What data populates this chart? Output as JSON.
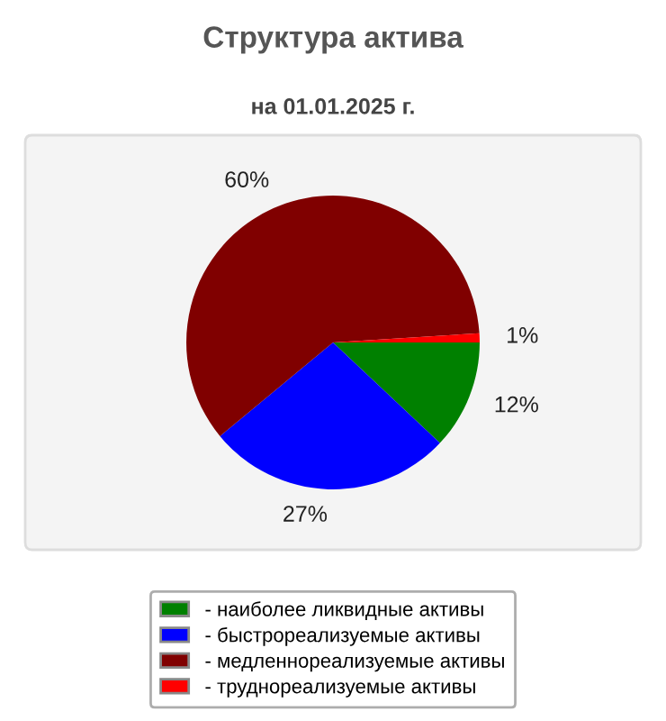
{
  "chart_data": {
    "type": "pie",
    "title": "Структура актива",
    "subtitle": "на 01.01.2025 г.",
    "categories": [
      "- наиболее ликвидные активы",
      "- быстрореализуемые активы",
      "- медленнореализуемые активы",
      "- труднореализуемые активы"
    ],
    "values": [
      12,
      27,
      60,
      1
    ],
    "colors": [
      "#008000",
      "#0000ff",
      "#800000",
      "#ff0000"
    ],
    "value_labels": [
      "12%",
      "27%",
      "60%",
      "1%"
    ],
    "legend": "bottom"
  }
}
